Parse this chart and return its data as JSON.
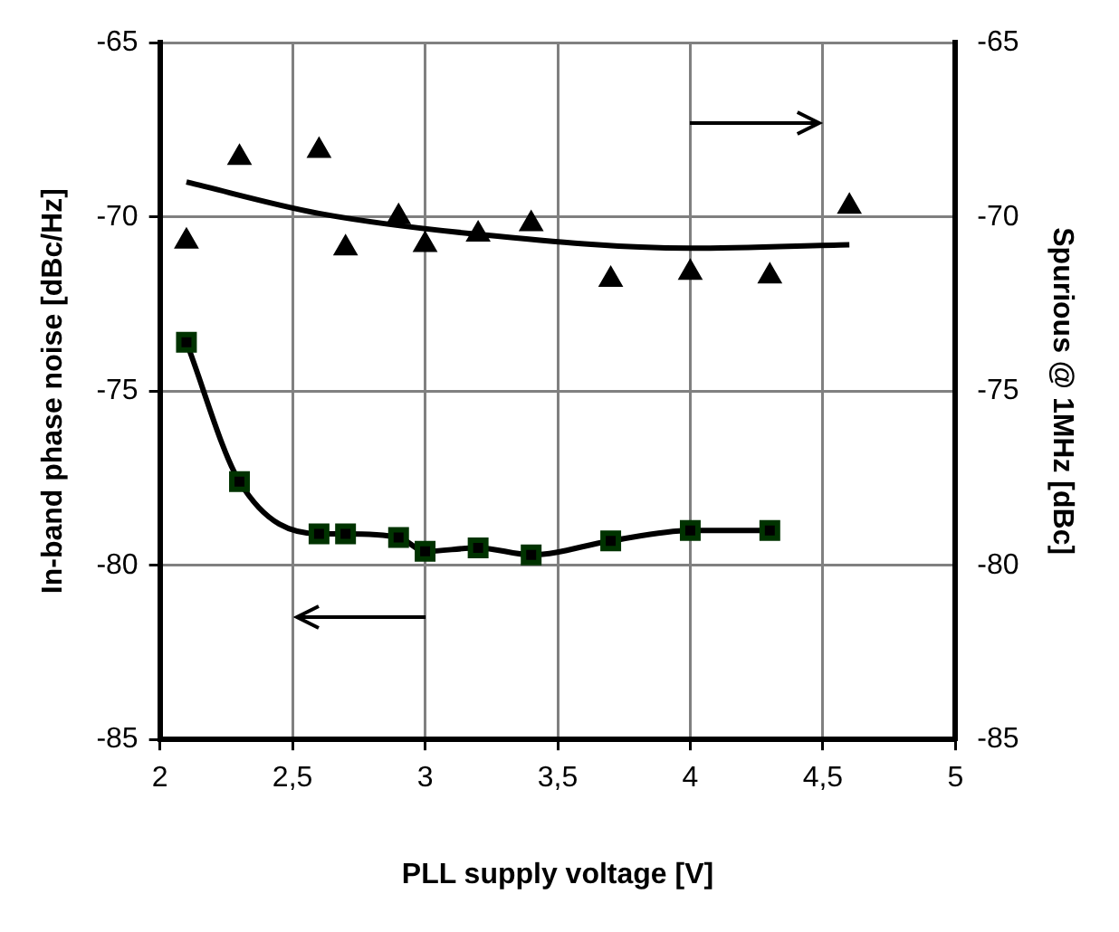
{
  "chart_data": {
    "type": "scatter",
    "xlabel": "PLL supply voltage [V]",
    "ylabel": "In-band phase noise [dBc/Hz]",
    "y2label": "Spurious @ 1MHz [dBc]",
    "xlim": [
      2,
      5
    ],
    "xticks": [
      2,
      {
        "value": 2.5,
        "label": "2,5"
      },
      3,
      {
        "value": 3.5,
        "label": "3,5"
      },
      4,
      {
        "value": 4.5,
        "label": "4,5"
      },
      5
    ],
    "ylim": [
      -85,
      -65
    ],
    "yticks": [
      -85,
      -80,
      -75,
      -70,
      -65
    ],
    "y2lim": [
      -85,
      -65
    ],
    "y2ticks": [
      -85,
      -80,
      -75,
      -70,
      -65
    ],
    "grid": true,
    "legend": false,
    "series": [
      {
        "type": "line",
        "color": "#000000",
        "marker": "square",
        "axis": "y",
        "x": [
          2.1,
          2.3,
          2.6,
          2.7,
          2.9,
          3.0,
          3.2,
          3.4,
          3.7,
          4.0,
          4.3
        ],
        "values": [
          -73.6,
          -77.6,
          -79.1,
          -79.1,
          -79.2,
          -79.6,
          -79.5,
          -79.7,
          -79.3,
          -79.0,
          -79.0
        ]
      },
      {
        "color": "#000000",
        "marker": "triangle",
        "axis": "y2",
        "x": [
          2.1,
          2.3,
          2.6,
          2.7,
          2.9,
          3.0,
          3.2,
          3.4,
          3.7,
          4.0,
          4.3,
          4.6
        ],
        "values": [
          -70.7,
          -68.3,
          -68.1,
          -70.9,
          -70.0,
          -70.8,
          -70.5,
          -70.2,
          -71.8,
          -71.6,
          -71.7,
          -69.7
        ]
      },
      {
        "type": "line",
        "color": "#000000",
        "marker": "none",
        "axis": "y2",
        "x": [
          2.1,
          2.6,
          3.2,
          4.0,
          4.6
        ],
        "values": [
          -69.0,
          -69.9,
          -70.5,
          -70.9,
          -70.8
        ]
      }
    ]
  }
}
